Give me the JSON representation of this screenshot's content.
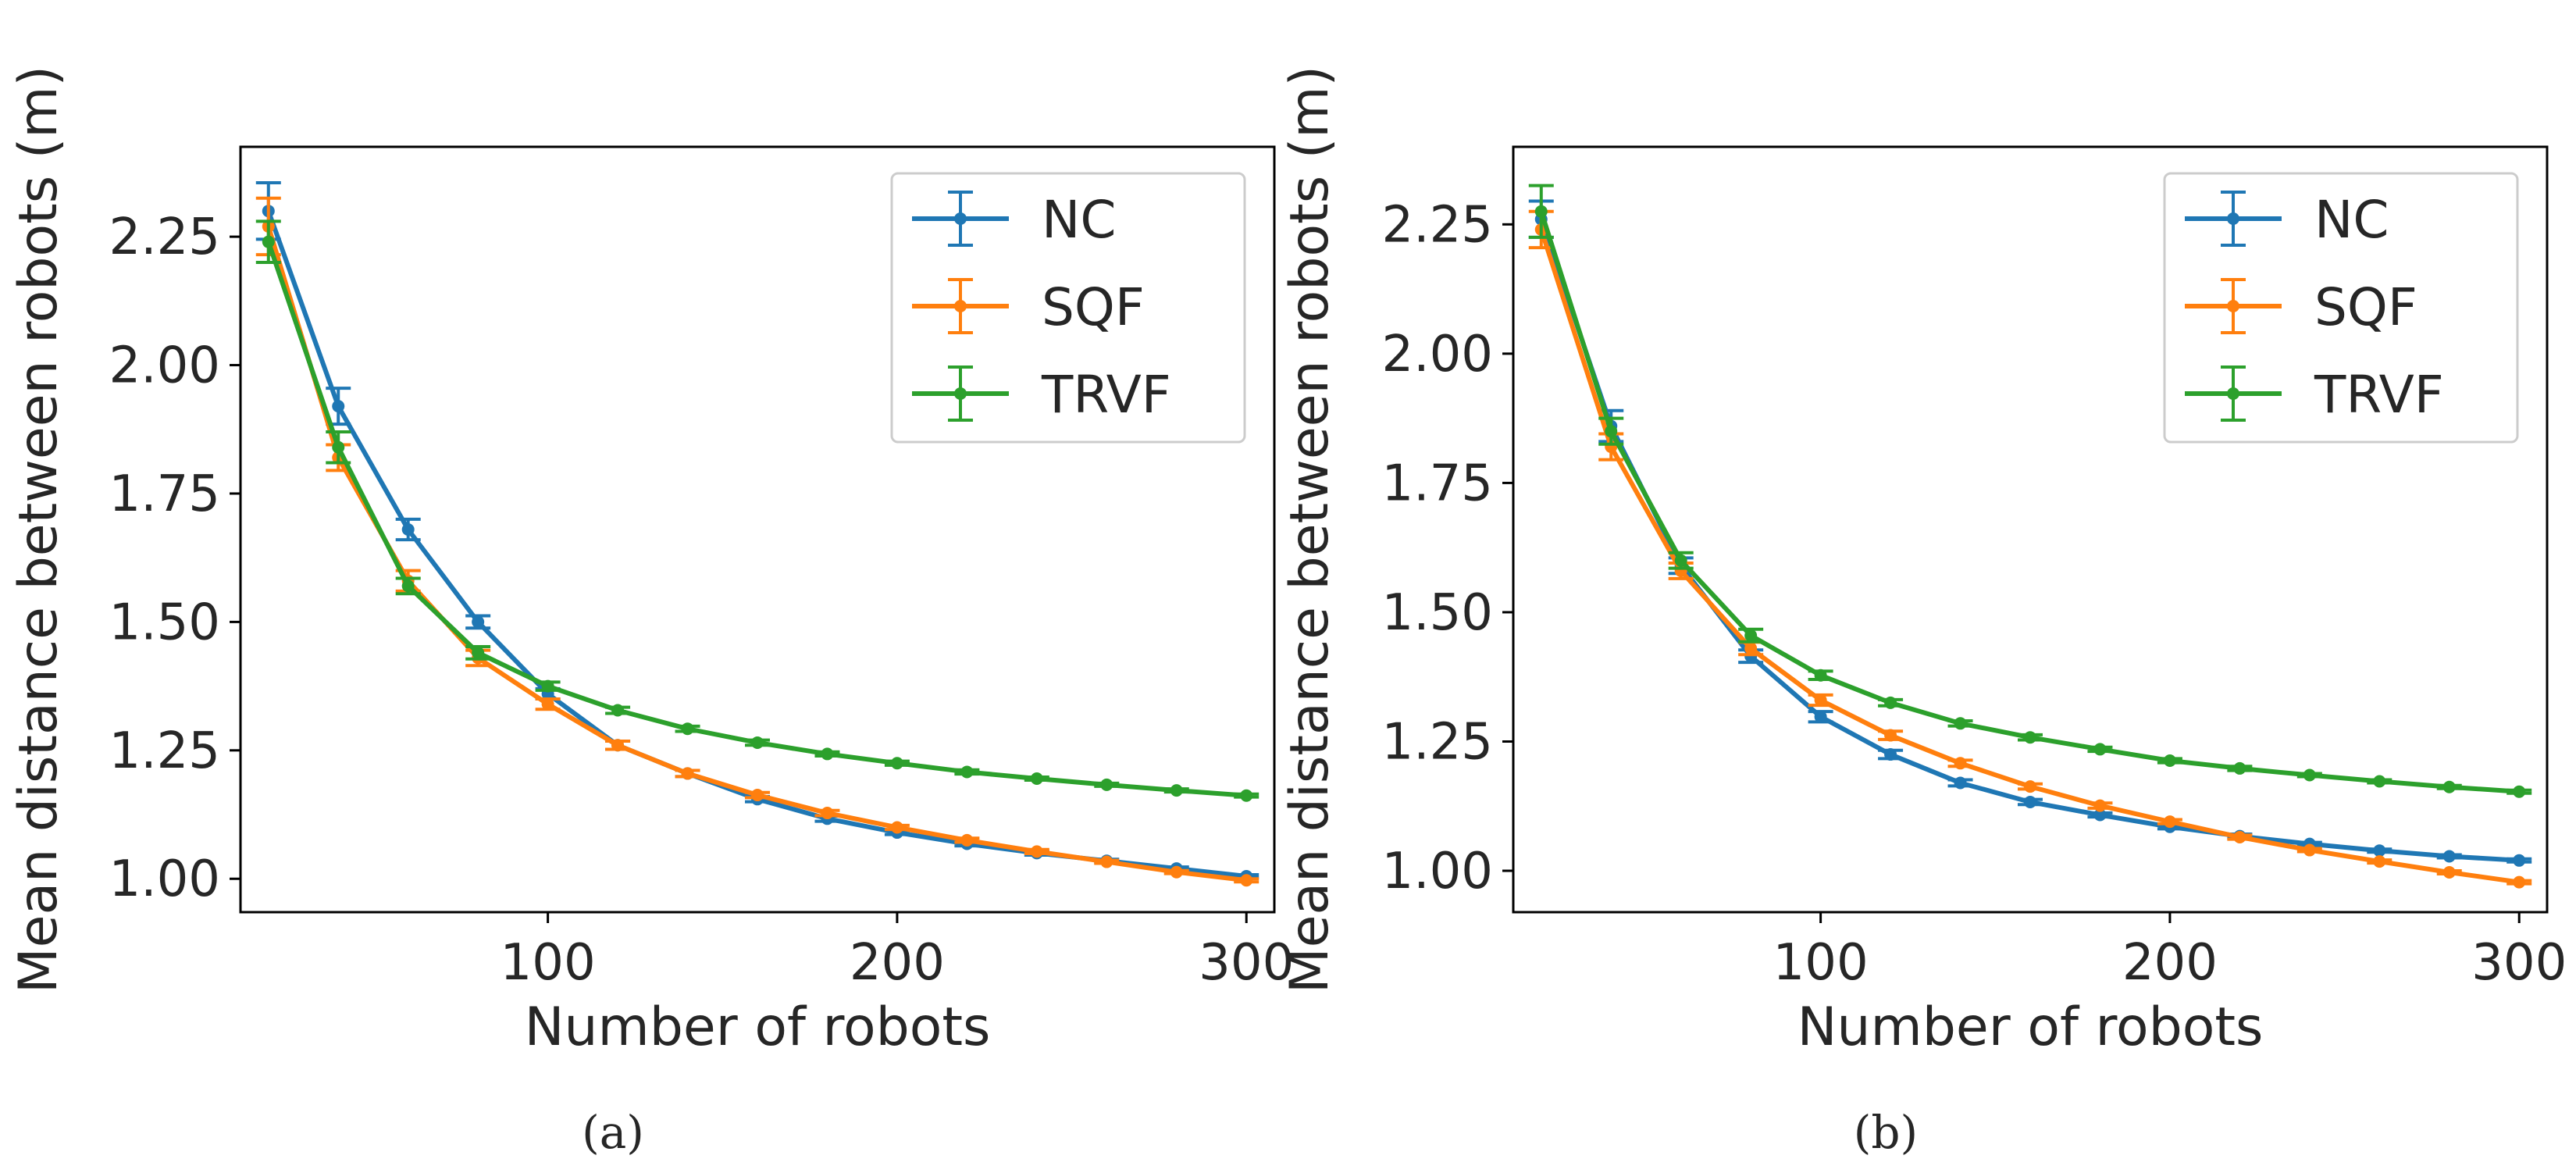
{
  "chart_data": [
    {
      "panel_label": "a",
      "type": "line",
      "xlabel": "Number of robots",
      "ylabel": "Mean distance between robots (m)",
      "xlim": [
        12,
        308
      ],
      "ylim": [
        0.935,
        2.425
      ],
      "xticks": [
        100,
        200,
        300
      ],
      "yticks": [
        1.0,
        1.25,
        1.5,
        1.75,
        2.0,
        2.25
      ],
      "xtick_labels": [
        "100",
        "200",
        "300"
      ],
      "ytick_labels": [
        "1.00",
        "1.25",
        "1.50",
        "1.75",
        "2.00",
        "2.25"
      ],
      "legend_position": "upper right",
      "x": [
        20,
        40,
        60,
        80,
        100,
        120,
        140,
        160,
        180,
        200,
        220,
        240,
        260,
        280,
        300
      ],
      "series": [
        {
          "name": "NC",
          "color": "#1f77b4",
          "values": [
            2.3,
            1.92,
            1.68,
            1.5,
            1.36,
            1.26,
            1.205,
            1.155,
            1.117,
            1.09,
            1.068,
            1.05,
            1.035,
            1.02,
            1.005
          ],
          "errors": [
            0.055,
            0.035,
            0.02,
            0.012,
            0.01,
            0.008,
            0.006,
            0.005,
            0.005,
            0.004,
            0.004,
            0.004,
            0.003,
            0.003,
            0.003
          ]
        },
        {
          "name": "SQF",
          "color": "#ff7f0e",
          "values": [
            2.27,
            1.82,
            1.58,
            1.43,
            1.34,
            1.26,
            1.205,
            1.163,
            1.128,
            1.1,
            1.075,
            1.053,
            1.033,
            1.013,
            0.997
          ],
          "errors": [
            0.055,
            0.025,
            0.02,
            0.015,
            0.01,
            0.008,
            0.006,
            0.005,
            0.005,
            0.004,
            0.004,
            0.004,
            0.003,
            0.003,
            0.003
          ]
        },
        {
          "name": "TRVF",
          "color": "#2ca02c",
          "values": [
            2.24,
            1.84,
            1.57,
            1.44,
            1.375,
            1.328,
            1.292,
            1.265,
            1.243,
            1.225,
            1.208,
            1.195,
            1.183,
            1.172,
            1.162
          ],
          "errors": [
            0.04,
            0.03,
            0.015,
            0.012,
            0.008,
            0.006,
            0.005,
            0.005,
            0.004,
            0.004,
            0.004,
            0.003,
            0.003,
            0.003,
            0.003
          ]
        }
      ]
    },
    {
      "panel_label": "b",
      "type": "line",
      "xlabel": "Number of robots",
      "ylabel": "Mean distance between robots (m)",
      "xlim": [
        12,
        308
      ],
      "ylim": [
        0.92,
        2.4
      ],
      "xticks": [
        100,
        200,
        300
      ],
      "yticks": [
        1.0,
        1.25,
        1.5,
        1.75,
        2.0,
        2.25
      ],
      "xtick_labels": [
        "100",
        "200",
        "300"
      ],
      "ytick_labels": [
        "1.00",
        "1.25",
        "1.50",
        "1.75",
        "2.00",
        "2.25"
      ],
      "legend_position": "upper right",
      "x": [
        20,
        40,
        60,
        80,
        100,
        120,
        140,
        160,
        180,
        200,
        220,
        240,
        260,
        280,
        300
      ],
      "series": [
        {
          "name": "NC",
          "color": "#1f77b4",
          "values": [
            2.26,
            1.86,
            1.59,
            1.415,
            1.298,
            1.225,
            1.17,
            1.133,
            1.108,
            1.085,
            1.067,
            1.052,
            1.039,
            1.028,
            1.02
          ],
          "errors": [
            0.035,
            0.03,
            0.015,
            0.012,
            0.01,
            0.008,
            0.006,
            0.005,
            0.004,
            0.004,
            0.004,
            0.003,
            0.003,
            0.003,
            0.003
          ]
        },
        {
          "name": "SQF",
          "color": "#ff7f0e",
          "values": [
            2.24,
            1.82,
            1.58,
            1.43,
            1.33,
            1.262,
            1.208,
            1.163,
            1.126,
            1.095,
            1.065,
            1.04,
            1.018,
            0.997,
            0.978
          ],
          "errors": [
            0.035,
            0.025,
            0.015,
            0.012,
            0.01,
            0.008,
            0.006,
            0.005,
            0.005,
            0.004,
            0.004,
            0.003,
            0.003,
            0.003,
            0.003
          ]
        },
        {
          "name": "TRVF",
          "color": "#2ca02c",
          "values": [
            2.275,
            1.85,
            1.6,
            1.455,
            1.378,
            1.325,
            1.285,
            1.258,
            1.235,
            1.213,
            1.198,
            1.185,
            1.173,
            1.162,
            1.153
          ],
          "errors": [
            0.05,
            0.025,
            0.015,
            0.012,
            0.008,
            0.006,
            0.005,
            0.005,
            0.004,
            0.004,
            0.004,
            0.003,
            0.003,
            0.003,
            0.003
          ]
        }
      ]
    }
  ],
  "captions": [
    "(a)",
    "(b)"
  ]
}
